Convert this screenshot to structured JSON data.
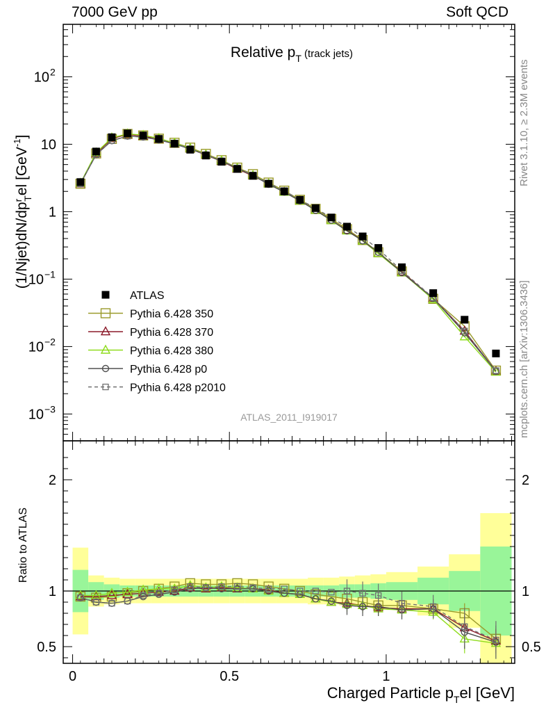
{
  "header": {
    "left": "7000 GeV pp",
    "right": "Soft QCD"
  },
  "side": {
    "rivet": "Rivet 3.1.10, ≥ 2.3M events",
    "mcplots": "mcplots.cern.ch [arXiv:1306.3436]"
  },
  "chart_data": [
    {
      "type": "line",
      "title": "Relative pT (track jets)",
      "ylabel": "(1/Njet)dN/dp_T^rel [GeV^-1]",
      "yscale": "log",
      "ylim": [
        0.0004,
        600
      ],
      "xlim": [
        -0.03,
        1.41
      ],
      "watermark": "ATLAS_2011_I919017",
      "legend_position": "bottom-left",
      "x": [
        0.025,
        0.075,
        0.125,
        0.175,
        0.225,
        0.275,
        0.325,
        0.375,
        0.425,
        0.475,
        0.525,
        0.575,
        0.625,
        0.675,
        0.725,
        0.775,
        0.825,
        0.875,
        0.925,
        0.975,
        1.05,
        1.15,
        1.25,
        1.35
      ],
      "series": [
        {
          "name": "ATLAS",
          "color": "#000000",
          "marker": "square-filled",
          "values": [
            2.75,
            7.8,
            12.7,
            14.5,
            13.5,
            12.0,
            10.2,
            8.3,
            6.8,
            5.5,
            4.3,
            3.4,
            2.6,
            2.0,
            1.5,
            1.13,
            0.82,
            0.6,
            0.43,
            0.29,
            0.15,
            0.062,
            0.025,
            0.0079
          ]
        },
        {
          "name": "Pythia 6.428 350",
          "color": "#9a9a2a",
          "marker": "square-open",
          "dash": "",
          "values": [
            2.6,
            7.3,
            12.0,
            14.2,
            13.5,
            12.1,
            10.5,
            8.9,
            7.2,
            5.8,
            4.5,
            3.6,
            2.7,
            2.05,
            1.5,
            1.1,
            0.78,
            0.55,
            0.38,
            0.25,
            0.13,
            0.051,
            0.02,
            0.0044
          ]
        },
        {
          "name": "Pythia 6.428 370",
          "color": "#8b1a2a",
          "marker": "triangle-open",
          "dash": "",
          "values": [
            2.6,
            7.3,
            12.2,
            14.0,
            13.2,
            11.9,
            10.2,
            8.6,
            6.9,
            5.6,
            4.3,
            3.4,
            2.6,
            1.95,
            1.45,
            1.05,
            0.74,
            0.53,
            0.37,
            0.24,
            0.128,
            0.052,
            0.017,
            0.0043
          ]
        },
        {
          "name": "Pythia 6.428 380",
          "color": "#8fdc1e",
          "marker": "triangle-open",
          "dash": "",
          "values": [
            2.65,
            7.5,
            12.5,
            14.3,
            13.6,
            12.2,
            10.4,
            8.7,
            7.0,
            5.7,
            4.4,
            3.45,
            2.6,
            1.95,
            1.45,
            1.05,
            0.74,
            0.52,
            0.37,
            0.24,
            0.125,
            0.05,
            0.014,
            0.0042
          ]
        },
        {
          "name": "Pythia 6.428 p0",
          "color": "#505050",
          "marker": "circle-open",
          "dash": "",
          "values": [
            2.6,
            7.0,
            11.3,
            13.2,
            12.8,
            11.6,
            10.1,
            8.5,
            7.0,
            5.6,
            4.4,
            3.45,
            2.55,
            1.95,
            1.45,
            1.05,
            0.75,
            0.52,
            0.37,
            0.25,
            0.125,
            0.052,
            0.016,
            0.0043
          ]
        },
        {
          "name": "Pythia 6.428 p2010",
          "color": "#707070",
          "marker": "square-open-small",
          "dash": "5,4",
          "values": [
            2.6,
            7.0,
            11.3,
            13.2,
            12.9,
            11.8,
            10.3,
            8.6,
            7.0,
            5.7,
            4.45,
            3.5,
            2.65,
            2.05,
            1.5,
            1.13,
            0.81,
            0.6,
            0.42,
            0.28,
            0.133,
            0.053,
            0.017,
            0.0044
          ]
        }
      ]
    },
    {
      "type": "line",
      "xlabel": "Charged Particle p_T^rel [GeV]",
      "ylabel": "Ratio to ATLAS",
      "ylim": [
        0.35,
        2.35
      ],
      "xlim": [
        -0.03,
        1.41
      ],
      "reference_line": 1.0,
      "x_ticks": [
        "0",
        "0.5",
        "1"
      ],
      "y_ticks": [
        "0.5",
        "1",
        "2"
      ],
      "bin_edges": [
        0.0,
        0.05,
        0.1,
        0.15,
        0.2,
        0.25,
        0.3,
        0.35,
        0.4,
        0.45,
        0.5,
        0.55,
        0.6,
        0.65,
        0.7,
        0.75,
        0.8,
        0.85,
        0.9,
        0.95,
        1.0,
        1.1,
        1.2,
        1.3,
        1.4
      ],
      "band_inner": [
        0.19,
        0.08,
        0.06,
        0.05,
        0.05,
        0.05,
        0.05,
        0.05,
        0.05,
        0.05,
        0.05,
        0.05,
        0.05,
        0.05,
        0.05,
        0.05,
        0.05,
        0.06,
        0.06,
        0.07,
        0.08,
        0.12,
        0.18,
        0.4
      ],
      "band_outer": [
        0.39,
        0.14,
        0.12,
        0.11,
        0.11,
        0.11,
        0.11,
        0.11,
        0.11,
        0.11,
        0.11,
        0.11,
        0.11,
        0.11,
        0.11,
        0.12,
        0.12,
        0.13,
        0.14,
        0.15,
        0.17,
        0.22,
        0.33,
        0.7
      ],
      "series": [
        {
          "name": "Pythia 6.428 350",
          "values": [
            0.95,
            0.94,
            0.95,
            0.98,
            1.0,
            1.02,
            1.04,
            1.07,
            1.06,
            1.06,
            1.07,
            1.06,
            1.04,
            1.02,
            1.0,
            0.97,
            0.95,
            0.93,
            0.9,
            0.87,
            0.87,
            0.84,
            0.8,
            0.57
          ]
        },
        {
          "name": "Pythia 6.428 370",
          "values": [
            0.95,
            0.95,
            0.96,
            0.97,
            0.98,
            0.99,
            1.0,
            1.03,
            1.02,
            1.03,
            1.02,
            1.02,
            1.01,
            0.98,
            0.97,
            0.93,
            0.9,
            0.89,
            0.87,
            0.85,
            0.84,
            0.84,
            0.67,
            0.55
          ]
        },
        {
          "name": "Pythia 6.428 380",
          "values": [
            0.96,
            0.96,
            0.98,
            0.99,
            1.01,
            1.02,
            1.02,
            1.05,
            1.03,
            1.04,
            1.03,
            1.02,
            1.0,
            0.98,
            0.97,
            0.93,
            0.9,
            0.88,
            0.87,
            0.84,
            0.83,
            0.81,
            0.57,
            0.53
          ]
        },
        {
          "name": "Pythia 6.428 p0",
          "values": [
            0.94,
            0.9,
            0.89,
            0.91,
            0.95,
            0.97,
            0.99,
            1.02,
            1.03,
            1.02,
            1.02,
            1.02,
            1.0,
            0.98,
            0.97,
            0.93,
            0.91,
            0.87,
            0.86,
            0.86,
            0.83,
            0.84,
            0.63,
            0.54
          ]
        },
        {
          "name": "Pythia 6.428 p2010",
          "values": [
            0.94,
            0.9,
            0.89,
            0.91,
            0.96,
            0.98,
            1.01,
            1.04,
            1.03,
            1.04,
            1.04,
            1.03,
            1.02,
            1.02,
            1.0,
            1.0,
            0.99,
            1.0,
            0.98,
            0.96,
            0.89,
            0.86,
            0.68,
            0.56
          ]
        }
      ]
    }
  ]
}
